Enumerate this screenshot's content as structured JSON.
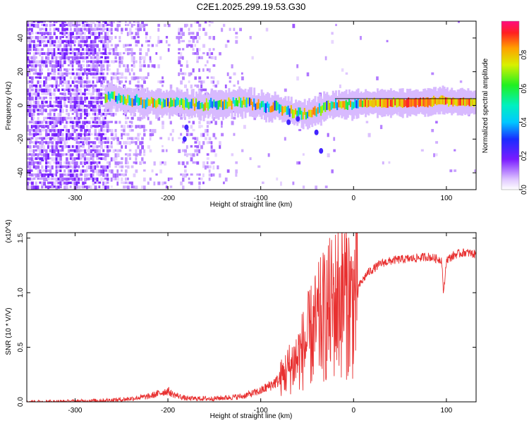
{
  "title": "C2E1.2025.299.19.53.G30",
  "chart_data": [
    {
      "type": "heatmap",
      "xlabel": "Height of straight line (km)",
      "ylabel": "Frequency (Hz)",
      "xlim": [
        -352,
        132
      ],
      "ylim": [
        -50,
        50
      ],
      "xticks": [
        -300,
        -200,
        -100,
        0,
        100
      ],
      "xtick_labels": [
        "-300",
        "-200",
        "-100",
        "0",
        "100"
      ],
      "yticks": [
        -40,
        -20,
        0,
        20,
        40
      ],
      "ytick_labels": [
        "-40",
        "-20",
        "0",
        "20",
        "40"
      ],
      "colorbar": {
        "label": "Normalized spectral amplitude",
        "range": [
          0,
          1
        ],
        "ticks": [
          0.0,
          0.2,
          0.4,
          0.6,
          0.8
        ],
        "tick_labels": [
          "0.0",
          "0.2",
          "0.4",
          "0.6",
          "0.8"
        ]
      },
      "ridge": {
        "x": [
          -265,
          -240,
          -215,
          -200,
          -185,
          -175,
          -160,
          -140,
          -120,
          -100,
          -80,
          -65,
          -55,
          -45,
          -35,
          -20,
          0,
          20,
          50,
          80,
          95,
          105,
          132
        ],
        "y": [
          5,
          3,
          1.5,
          1,
          1,
          0.5,
          0,
          1,
          2,
          0,
          -2,
          -4,
          -5,
          -4,
          -2,
          0,
          1,
          1.5,
          1.5,
          2,
          3,
          2,
          2
        ]
      }
    },
    {
      "type": "line",
      "xlabel": "Height of straight line (km)",
      "ylabel": "SNR (10 * V/V)",
      "scale_label": "(x10^4)",
      "xlim": [
        -352,
        132
      ],
      "ylim": [
        0,
        1.55
      ],
      "xticks": [
        -300,
        -200,
        -100,
        0,
        100
      ],
      "xtick_labels": [
        "-300",
        "-200",
        "-100",
        "0",
        "100"
      ],
      "yticks": [
        0,
        0.5,
        1.0,
        1.5
      ],
      "ytick_labels": [
        "0.0",
        "0.5",
        "1.0",
        "1.5"
      ],
      "color": "#e83030",
      "series": [
        {
          "name": "SNR",
          "x": [
            -352,
            -300,
            -250,
            -220,
            -205,
            -200,
            -195,
            -180,
            -150,
            -120,
            -100,
            -80,
            -60,
            -45,
            -35,
            -25,
            -15,
            -8,
            -2,
            5,
            15,
            30,
            45,
            60,
            80,
            95,
            97,
            100,
            110,
            120,
            132
          ],
          "y": [
            0.0,
            0.005,
            0.02,
            0.05,
            0.09,
            0.1,
            0.07,
            0.03,
            0.03,
            0.05,
            0.1,
            0.2,
            0.4,
            0.62,
            0.75,
            0.85,
            0.95,
            1.0,
            0.9,
            1.05,
            1.18,
            1.27,
            1.3,
            1.31,
            1.33,
            1.3,
            0.98,
            1.3,
            1.35,
            1.37,
            1.35
          ]
        }
      ]
    }
  ]
}
